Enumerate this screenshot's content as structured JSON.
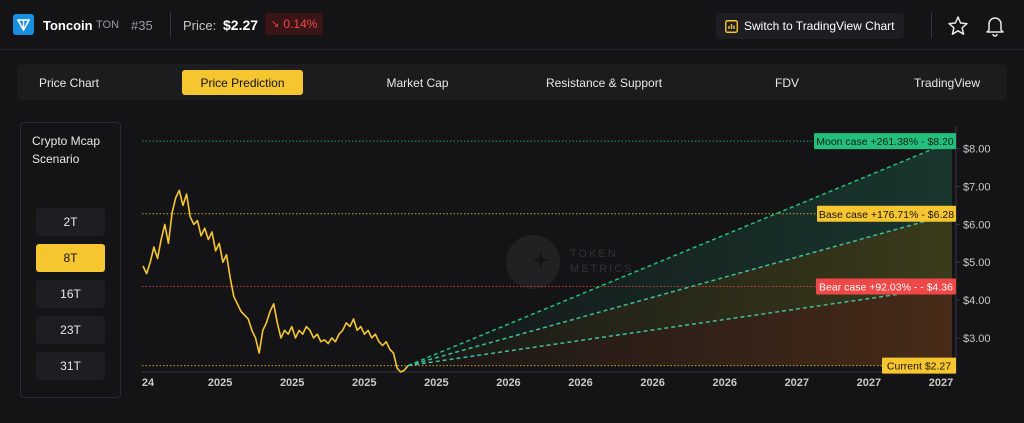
{
  "header": {
    "coin_name": "Toncoin",
    "coin_symbol": "TON",
    "rank": "#35",
    "price_label": "Price:",
    "price_value": "$2.27",
    "price_change": "0.14%",
    "price_change_direction": "down",
    "switch_button_label": "Switch to TradingView Chart",
    "icons": [
      "toncoin-logo-icon",
      "chart-icon",
      "star-icon",
      "bell-icon"
    ]
  },
  "tabs": [
    {
      "label": "Price Chart",
      "active": false
    },
    {
      "label": "Price Prediction",
      "active": true
    },
    {
      "label": "Market Cap",
      "active": false
    },
    {
      "label": "Resistance & Support",
      "active": false
    },
    {
      "label": "FDV",
      "active": false
    },
    {
      "label": "TradingView",
      "active": false
    }
  ],
  "scenario": {
    "title": "Crypto Mcap Scenario",
    "options": [
      {
        "label": "2T",
        "active": false
      },
      {
        "label": "8T",
        "active": true
      },
      {
        "label": "16T",
        "active": false
      },
      {
        "label": "23T",
        "active": false
      },
      {
        "label": "31T",
        "active": false
      }
    ]
  },
  "colors": {
    "accent": "#f6c630",
    "moon": "#22c07a",
    "base": "#f6c630",
    "bear": "#f04848",
    "down": "#f04848"
  },
  "chart_data": {
    "type": "line",
    "watermark": "TOKEN METRICS",
    "ylim": [
      2.1,
      8.6
    ],
    "yticks": [
      "$8.00",
      "$7.00",
      "$6.00",
      "$5.00",
      "$4.00",
      "$3.00"
    ],
    "ytick_values": [
      8,
      7,
      6,
      5,
      4,
      3
    ],
    "xticks": [
      "24",
      "2025",
      "2025",
      "2025",
      "2025",
      "2026",
      "2026",
      "2026",
      "2026",
      "2027",
      "2027",
      "2027"
    ],
    "price_series": [
      4.9,
      4.7,
      5.0,
      5.4,
      5.1,
      5.6,
      6.0,
      5.5,
      6.3,
      6.7,
      6.9,
      6.5,
      6.8,
      6.2,
      6.0,
      6.1,
      5.7,
      5.9,
      5.6,
      5.8,
      5.3,
      5.5,
      5.0,
      5.2,
      4.6,
      4.1,
      3.9,
      3.7,
      3.6,
      3.5,
      3.2,
      3.0,
      2.6,
      3.2,
      3.4,
      3.7,
      3.9,
      3.4,
      3.0,
      3.2,
      3.1,
      3.3,
      3.0,
      3.2,
      3.1,
      3.3,
      3.2,
      3.0,
      3.1,
      2.9,
      2.95,
      2.85,
      3.0,
      2.9,
      3.1,
      3.2,
      3.4,
      3.3,
      3.5,
      3.2,
      3.3,
      3.1,
      3.2,
      3.0,
      3.1,
      2.9,
      2.8,
      2.9,
      2.7,
      2.6,
      2.2,
      2.1,
      2.15,
      2.27
    ],
    "scenarios": [
      {
        "label": "Moon case +261.38% - $8.20",
        "value": 8.2
      },
      {
        "label": "Base case +176.71% - $6.28",
        "value": 6.28
      },
      {
        "label": "Bear case +92.03% - - $4.36",
        "value": 4.36
      },
      {
        "label": "Current $2.27",
        "value": 2.27
      }
    ]
  }
}
